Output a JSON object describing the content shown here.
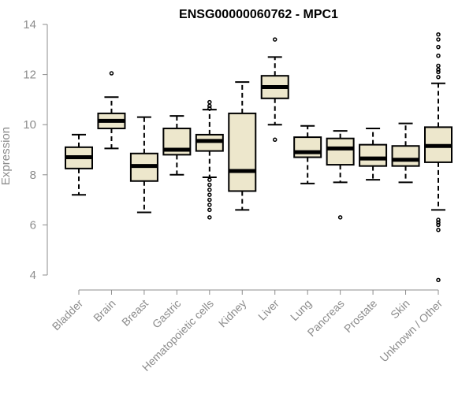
{
  "chart_data": {
    "type": "box",
    "title": "ENSG00000060762 - MPC1",
    "xlabel": "",
    "ylabel": "Expression",
    "ylim": [
      3.6,
      14.1
    ],
    "yticks": [
      4,
      6,
      8,
      10,
      12,
      14
    ],
    "categories": [
      "Bladder",
      "Brain",
      "Breast",
      "Gastric",
      "Hematopoietic cells",
      "Kidney",
      "Liver",
      "Lung",
      "Pancreas",
      "Prostate",
      "Skin",
      "Unknown / Other"
    ],
    "boxes": [
      {
        "min": 7.2,
        "q1": 8.25,
        "median": 8.7,
        "q3": 9.1,
        "max": 9.6,
        "outliers": []
      },
      {
        "min": 9.05,
        "q1": 9.85,
        "median": 10.15,
        "q3": 10.45,
        "max": 11.1,
        "outliers": [
          12.05
        ]
      },
      {
        "min": 6.5,
        "q1": 7.75,
        "median": 8.35,
        "q3": 8.85,
        "max": 10.3,
        "outliers": []
      },
      {
        "min": 8.0,
        "q1": 8.8,
        "median": 9.0,
        "q3": 9.85,
        "max": 10.35,
        "outliers": []
      },
      {
        "min": 7.9,
        "q1": 8.95,
        "median": 9.35,
        "q3": 9.6,
        "max": 10.6,
        "outliers": [
          10.9,
          10.75,
          10.65,
          7.8,
          7.6,
          7.4,
          7.2,
          7.0,
          6.8,
          6.6,
          6.3
        ]
      },
      {
        "min": 6.6,
        "q1": 7.35,
        "median": 8.15,
        "q3": 10.45,
        "max": 11.7,
        "outliers": []
      },
      {
        "min": 10.0,
        "q1": 11.05,
        "median": 11.5,
        "q3": 11.95,
        "max": 12.7,
        "outliers": [
          13.4,
          9.4
        ]
      },
      {
        "min": 7.65,
        "q1": 8.7,
        "median": 8.9,
        "q3": 9.5,
        "max": 9.95,
        "outliers": []
      },
      {
        "min": 7.7,
        "q1": 8.4,
        "median": 9.05,
        "q3": 9.45,
        "max": 9.75,
        "outliers": [
          6.3
        ]
      },
      {
        "min": 7.8,
        "q1": 8.35,
        "median": 8.65,
        "q3": 9.2,
        "max": 9.85,
        "outliers": []
      },
      {
        "min": 7.7,
        "q1": 8.35,
        "median": 8.6,
        "q3": 9.15,
        "max": 10.05,
        "outliers": []
      },
      {
        "min": 6.6,
        "q1": 8.5,
        "median": 9.15,
        "q3": 9.9,
        "max": 11.65,
        "outliers": [
          13.6,
          13.4,
          13.1,
          12.75,
          12.35,
          12.2,
          12.1,
          11.9,
          6.2,
          6.1,
          6.0,
          5.8,
          3.8
        ]
      }
    ],
    "colors": {
      "box_fill": "#ede7cc",
      "axis": "#8c8c8c",
      "stroke": "#000000"
    },
    "grid": false,
    "legend": "none"
  }
}
